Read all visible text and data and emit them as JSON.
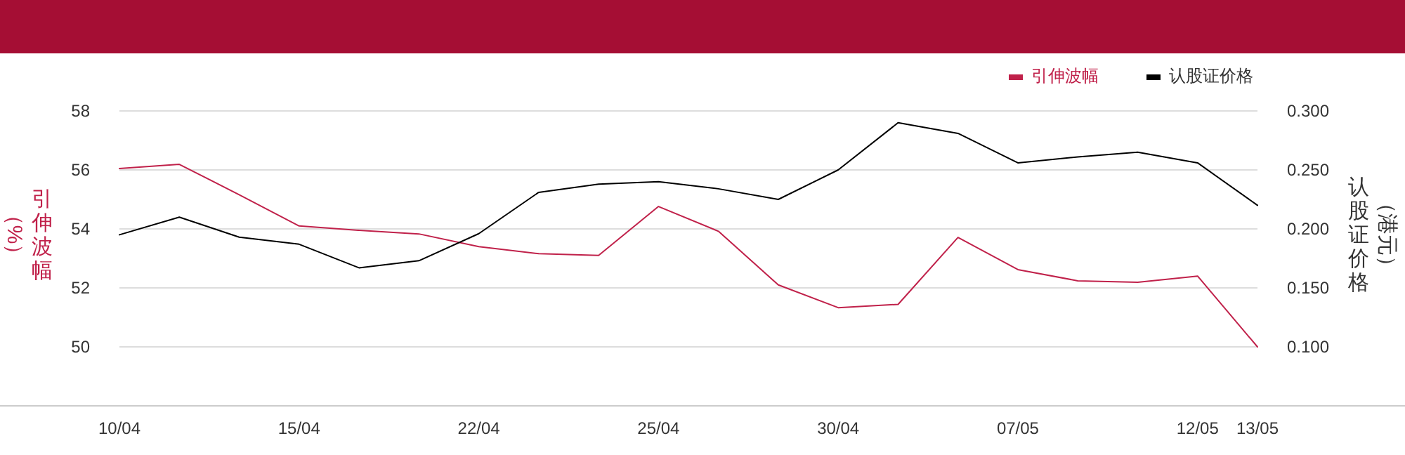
{
  "chart_data": {
    "type": "line",
    "ylabel": "引伸波幅（%）",
    "y2label": "认股证价格（港元）",
    "categories": [
      "10/04",
      null,
      null,
      "15/04",
      null,
      null,
      "22/04",
      null,
      null,
      "25/04",
      null,
      null,
      "30/04",
      null,
      null,
      "07/05",
      null,
      null,
      "12/05",
      "13/05"
    ],
    "series": [
      {
        "name": "引伸波幅",
        "color": "#c0214a",
        "values": [
          56.05,
          56.19,
          55.16,
          54.1,
          53.95,
          53.83,
          53.4,
          53.16,
          53.1,
          54.76,
          53.92,
          52.1,
          51.33,
          51.44,
          53.71,
          52.62,
          52.24,
          52.19,
          52.4,
          50.0
        ]
      },
      {
        "name": "认股证价格",
        "color": "#000000",
        "axis": "y2",
        "values": [
          0.195,
          0.21,
          0.193,
          0.187,
          0.167,
          0.173,
          0.196,
          0.231,
          0.238,
          0.24,
          0.234,
          0.225,
          0.25,
          0.29,
          0.281,
          0.256,
          0.261,
          0.265,
          0.256,
          0.22
        ]
      }
    ],
    "ylim": [
      48,
      58
    ],
    "yticks": [
      50,
      52,
      54,
      56,
      58
    ],
    "y2lim": [
      0.05,
      0.3
    ],
    "y2ticks": [
      {
        "value": 0.1,
        "label": "0.100"
      },
      {
        "value": 0.15,
        "label": "0.150"
      },
      {
        "value": 0.2,
        "label": "0.200"
      },
      {
        "value": 0.25,
        "label": "0.250"
      },
      {
        "value": 0.3,
        "label": "0.300"
      }
    ],
    "grid": "y",
    "legend": "top right",
    "marker": "none",
    "line_style": "solid"
  }
}
